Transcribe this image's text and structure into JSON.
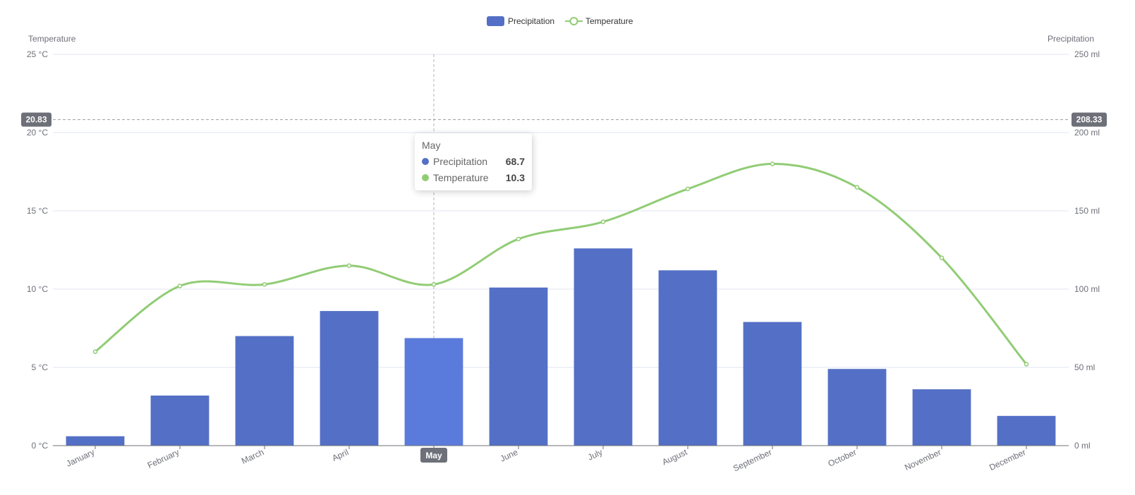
{
  "chart_data": {
    "type": "bar",
    "categories": [
      "January",
      "February",
      "March",
      "April",
      "May",
      "June",
      "July",
      "August",
      "September",
      "October",
      "November",
      "December"
    ],
    "series": [
      {
        "name": "Precipitation",
        "type": "bar",
        "axis": "right",
        "values": [
          6.0,
          32.0,
          70.0,
          86.0,
          68.7,
          101.0,
          126.0,
          112.0,
          79.0,
          49.0,
          36.0,
          19.0
        ]
      },
      {
        "name": "Temperature",
        "type": "line",
        "axis": "left",
        "smooth": true,
        "values": [
          6.0,
          10.2,
          10.3,
          11.5,
          10.3,
          13.2,
          14.3,
          16.4,
          18.0,
          16.5,
          12.0,
          5.2
        ]
      }
    ],
    "y_left": {
      "label": "Temperature",
      "min": 0,
      "max": 25,
      "interval": 5,
      "unit": "°C",
      "tick_labels": [
        "0 °C",
        "5 °C",
        "10 °C",
        "15 °C",
        "20 °C",
        "25 °C"
      ]
    },
    "y_right": {
      "label": "Precipitation",
      "min": 0,
      "max": 250,
      "interval": 50,
      "unit": "ml",
      "tick_labels": [
        "0 ml",
        "50 ml",
        "100 ml",
        "150 ml",
        "200 ml",
        "250 ml"
      ]
    },
    "legend": {
      "position": "top-center",
      "items": [
        "Precipitation",
        "Temperature"
      ]
    },
    "grid": true,
    "colors": {
      "bar": "#5470c6",
      "bar_emphasis": "#5b7bdc",
      "line": "#91cc75",
      "axis_pointer_label_bg": "#6e7079",
      "grid": "#e0e6f1",
      "axis": "#6e7079"
    }
  },
  "pointer": {
    "category": "May",
    "left_value_label": "20.83",
    "right_value_label": "208.33",
    "left_value": 20.83,
    "right_value": 208.33
  },
  "tooltip": {
    "title": "May",
    "rows": [
      {
        "name": "Precipitation",
        "value": "68.7",
        "color": "#5470c6"
      },
      {
        "name": "Temperature",
        "value": "10.3",
        "color": "#91cc75"
      }
    ]
  }
}
